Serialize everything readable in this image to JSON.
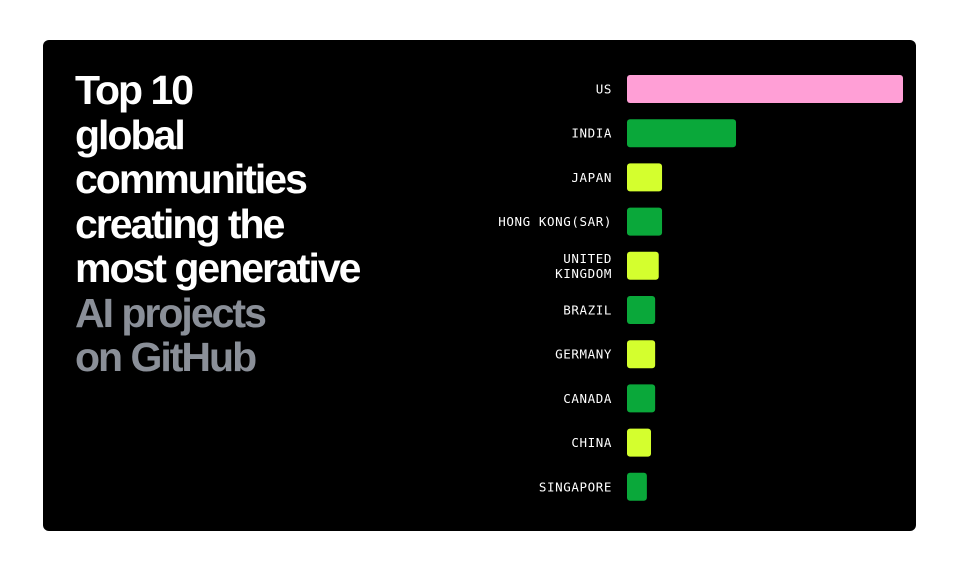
{
  "colors": {
    "background": "#000000",
    "page": "#ffffff",
    "title_primary": "#ffffff",
    "title_secondary": "#8a8f98",
    "pink": "#ff9fd6",
    "green": "#0aa83a",
    "lime": "#d4ff2e"
  },
  "title": {
    "lines_white": [
      "Top 10",
      "global",
      "communities",
      "creating the",
      "most generative"
    ],
    "lines_grey": [
      "AI projects",
      "on GitHub"
    ]
  },
  "chart_data": {
    "type": "bar",
    "orientation": "horizontal",
    "title": "Top 10 global communities creating the most generative AI projects on GitHub",
    "categories": [
      "US",
      "INDIA",
      "JAPAN",
      "HONG KONG(SAR)",
      "UNITED KINGDOM",
      "BRAZIL",
      "GERMANY",
      "CANADA",
      "CHINA",
      "SINGAPORE"
    ],
    "category_lines": [
      [
        "US"
      ],
      [
        "INDIA"
      ],
      [
        "JAPAN"
      ],
      [
        "HONG KONG(SAR)"
      ],
      [
        "UNITED",
        "KINGDOM"
      ],
      [
        "BRAZIL"
      ],
      [
        "GERMANY"
      ],
      [
        "CANADA"
      ],
      [
        "CHINA"
      ],
      [
        "SINGAPORE"
      ]
    ],
    "values": [
      100,
      39.5,
      12.7,
      12.7,
      11.5,
      10.2,
      10.2,
      10.2,
      8.7,
      7.2
    ],
    "bar_colors": [
      "pink",
      "green",
      "lime",
      "green",
      "lime",
      "green",
      "lime",
      "green",
      "lime",
      "green"
    ],
    "xlim": [
      0,
      100
    ],
    "axes_visible": false,
    "grid": false,
    "legend": "none"
  }
}
